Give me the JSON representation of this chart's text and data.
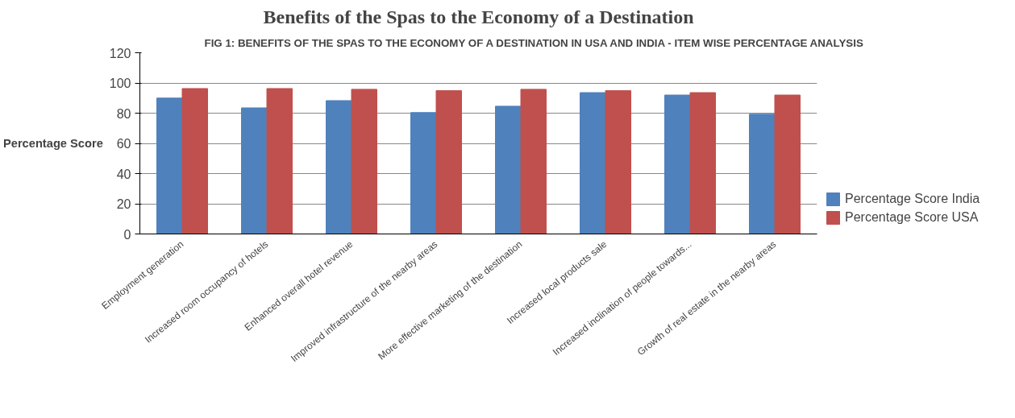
{
  "chart_data": {
    "type": "bar",
    "title": "Benefits of the Spas to the Economy of a Destination",
    "ylabel": "Percentage Score",
    "annotations": [
      "FIG 1: BENEFITS OF THE SPAS TO THE ECONOMY OF A DESTINATION IN USA AND INDIA - ITEM WISE PERCENTAGE ANALYSIS"
    ],
    "categories": [
      "Employment generation",
      "Increased room occupancy of hotels",
      "Enhanced overall hotel revenue",
      "Improved infrastructure of the nearby areas",
      "More effective marketing of the destination",
      "Increased local products sale",
      "Increased inclination of people towards...",
      "Growth of real estate in the nearby areas"
    ],
    "series": [
      {
        "name": "Percentage Score India",
        "color": "#4f81bd",
        "values": [
          90,
          83.5,
          88.3,
          80.4,
          84.6,
          93.6,
          92,
          79.3
        ]
      },
      {
        "name": "Percentage Score USA",
        "color": "#c0504d",
        "values": [
          96.3,
          96.3,
          95.8,
          94.9,
          95.8,
          94.9,
          93.6,
          92
        ]
      }
    ],
    "ylim": [
      0,
      120
    ],
    "yticks": [
      0,
      20,
      40,
      60,
      80,
      100,
      120
    ],
    "grid": "y",
    "legend": "right"
  }
}
